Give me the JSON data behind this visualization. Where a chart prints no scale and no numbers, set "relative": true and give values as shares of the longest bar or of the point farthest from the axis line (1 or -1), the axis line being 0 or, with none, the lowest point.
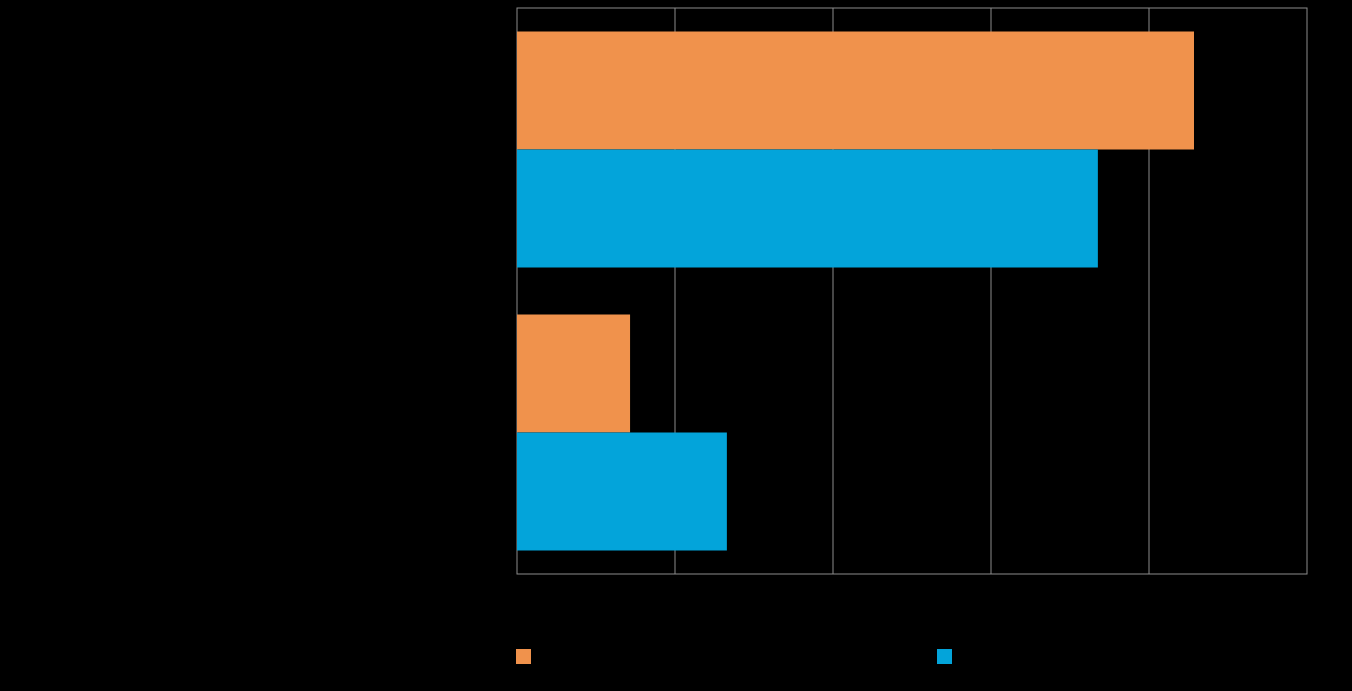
{
  "chart_data": {
    "type": "bar",
    "orientation": "horizontal",
    "relative": true,
    "categories": [
      null,
      null
    ],
    "series": [
      {
        "color": "#f0924c",
        "values": [
          1,
          0.167
        ]
      },
      {
        "color": "#03a4da",
        "values": [
          0.858,
          0.31
        ]
      }
    ],
    "grid": "x"
  }
}
